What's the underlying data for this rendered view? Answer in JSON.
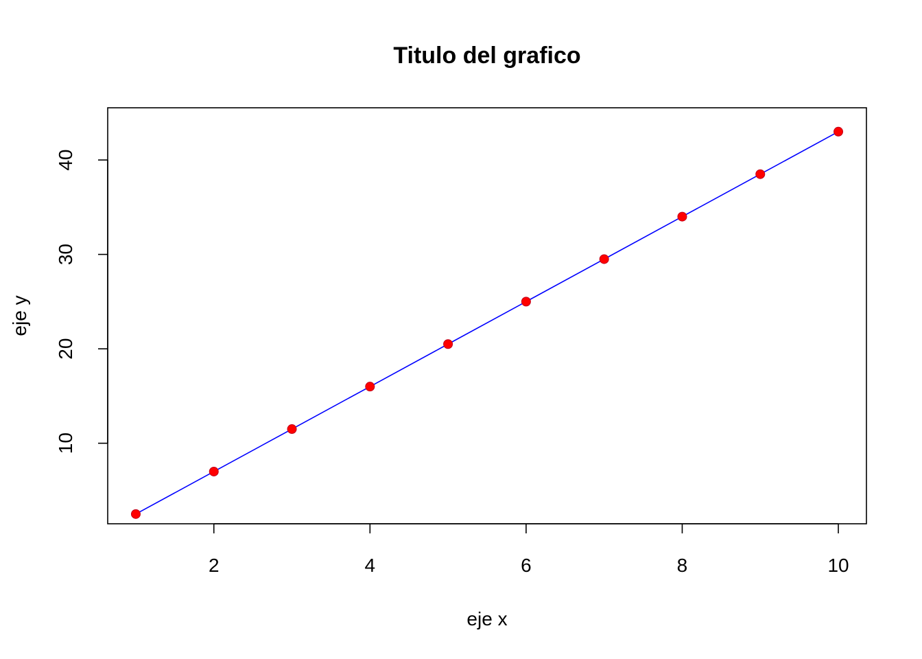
{
  "chart_data": {
    "type": "scatter",
    "title": "Titulo del grafico",
    "xlabel": "eje x",
    "ylabel": "eje y",
    "xlim": [
      0.64,
      10.36
    ],
    "ylim": [
      1.47,
      45.53
    ],
    "x_ticks": [
      2,
      4,
      6,
      8,
      10
    ],
    "y_ticks": [
      10,
      20,
      30,
      40
    ],
    "grid": false,
    "box": true,
    "x": [
      1,
      2,
      3,
      4,
      5,
      6,
      7,
      8,
      9,
      10
    ],
    "y": [
      2.5,
      7,
      11.5,
      16,
      20.5,
      25,
      29.5,
      34,
      38.5,
      43
    ],
    "point_color": "#ff0000",
    "point_edge_color": "#c0001a",
    "line_color": "#0000ff"
  }
}
